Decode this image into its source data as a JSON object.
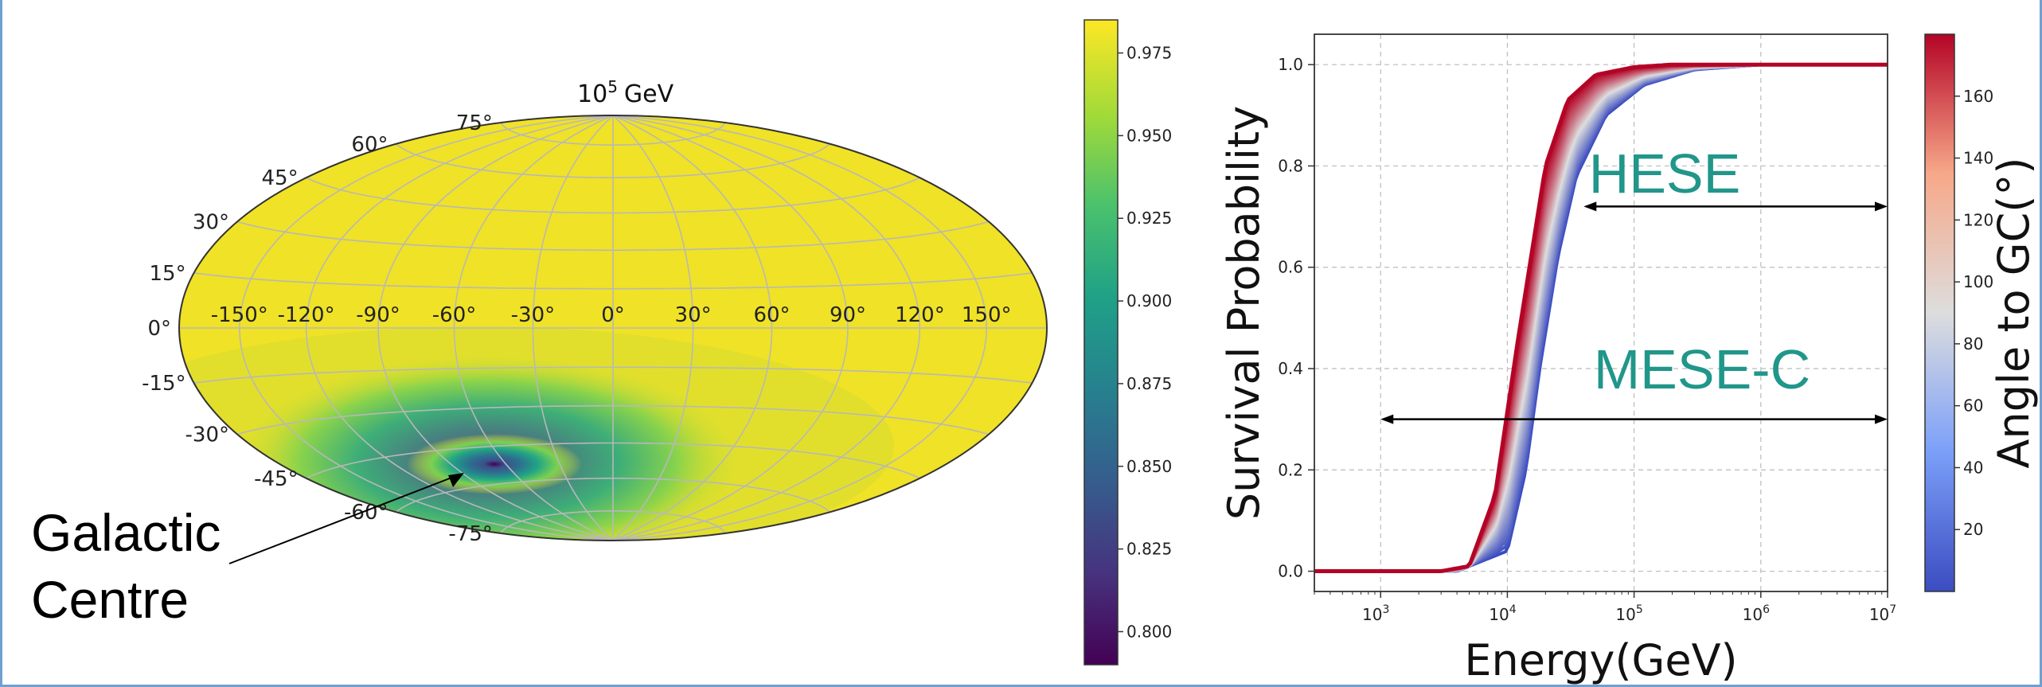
{
  "colors": {
    "sky_fill": "#f0e226",
    "viridis": [
      "#440154",
      "#46327e",
      "#365c8d",
      "#277f8e",
      "#1fa187",
      "#4ac16d",
      "#a0da39",
      "#fde725"
    ],
    "curve_low": "#3b4cc0",
    "curve_mid": "#dddddd",
    "curve_high": "#b40426",
    "annotation_teal": "#21968a"
  },
  "map": {
    "title_base": "10",
    "title_exp": "5",
    "title_unit": "GeV",
    "lon_labels": [
      "-150°",
      "-120°",
      "-90°",
      "-60°",
      "-30°",
      "0°",
      "30°",
      "60°",
      "90°",
      "120°",
      "150°"
    ],
    "lat_labels": [
      "75°",
      "60°",
      "45°",
      "30°",
      "15°",
      "0°",
      "-15°",
      "-30°",
      "-45°",
      "-60°",
      "-75°"
    ],
    "annotation_line1": "Galactic",
    "annotation_line2": "Centre"
  },
  "colorbar_left": {
    "ticks": [
      "0.975",
      "0.950",
      "0.925",
      "0.900",
      "0.875",
      "0.850",
      "0.825",
      "0.800"
    ]
  },
  "chart_data": [
    {
      "type": "heatmap",
      "projection": "hammer",
      "title": "10^5 GeV",
      "colormap": "viridis",
      "value_range": [
        0.79,
        0.985
      ],
      "hotspot": {
        "lon": -45,
        "lat": -45,
        "value": 0.79
      },
      "background_value": 0.98,
      "colorbar_ticks": [
        0.975,
        0.95,
        0.925,
        0.9,
        0.875,
        0.85,
        0.825,
        0.8
      ]
    },
    {
      "type": "line",
      "xlabel": "Energy(GeV)",
      "ylabel": "Survival Probability",
      "x_scale": "log",
      "xlim": [
        300,
        10000000
      ],
      "ylim": [
        -0.04,
        1.06
      ],
      "x_ticks": [
        "10^3",
        "10^4",
        "10^5",
        "10^6",
        "10^7"
      ],
      "y_ticks": [
        "0.0",
        "0.2",
        "0.4",
        "0.6",
        "0.8",
        "1.0"
      ],
      "grid": true,
      "series_family": {
        "parameter_label": "Angle to GC(°)",
        "parameter_range": [
          0,
          180
        ],
        "colormap": "coolwarm",
        "curve_at_0deg": {
          "x": [
            300,
            3000,
            5000,
            8000,
            12000,
            20000,
            30000,
            50000,
            100000,
            200000,
            400000,
            10000000
          ],
          "y": [
            0.0,
            0.0,
            0.01,
            0.15,
            0.45,
            0.8,
            0.93,
            0.98,
            0.995,
            1.0,
            1.0,
            1.0
          ]
        },
        "curve_at_180deg": {
          "x": [
            300,
            4000,
            10000,
            14000,
            18000,
            25000,
            35000,
            60000,
            120000,
            300000,
            1000000,
            10000000
          ],
          "y": [
            0.0,
            0.0,
            0.04,
            0.2,
            0.4,
            0.62,
            0.78,
            0.9,
            0.96,
            0.99,
            1.0,
            1.0
          ]
        }
      },
      "annotations": [
        {
          "text": "HESE",
          "x_from": 40000,
          "x_to": 10000000,
          "y": 0.72
        },
        {
          "text": "MESE-C",
          "x_from": 1000,
          "x_to": 10000000,
          "y": 0.3
        }
      ],
      "colorbar_ticks": [
        20,
        40,
        60,
        80,
        100,
        120,
        140,
        160
      ]
    }
  ],
  "plot": {
    "xlabel": "Energy(GeV)",
    "ylabel": "Survival Probability",
    "hese_label": "HESE",
    "mese_label": "MESE-C",
    "x_tick_base": "10",
    "x_tick_exps": [
      "3",
      "4",
      "5",
      "6",
      "7"
    ],
    "y_ticks": [
      "0.0",
      "0.2",
      "0.4",
      "0.6",
      "0.8",
      "1.0"
    ]
  },
  "colorbar_right": {
    "label": "Angle to GC(°)",
    "ticks": [
      "20",
      "40",
      "60",
      "80",
      "100",
      "120",
      "140",
      "160"
    ]
  }
}
